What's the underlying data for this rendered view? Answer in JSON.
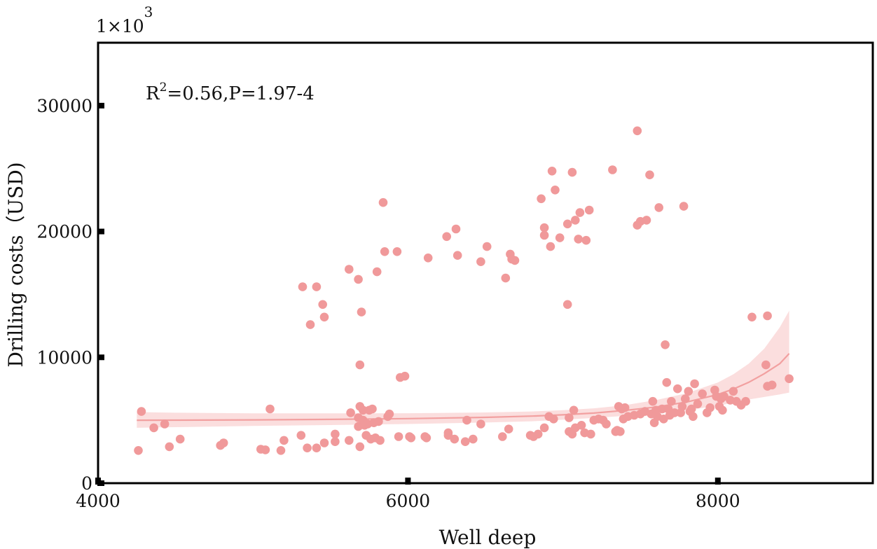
{
  "chart_data": {
    "type": "scatter",
    "xlabel": "Well deep",
    "ylabel": "Drilling costs（USD)",
    "y_multiplier_label": "1×10",
    "y_multiplier_exp": "3",
    "annotation": {
      "prefix": "R",
      "sup": "2",
      "suffix": "=0.56,P=1.97-4"
    },
    "xlim": [
      4000,
      9000
    ],
    "ylim": [
      0,
      35000
    ],
    "x_ticks": [
      4000,
      6000,
      8000
    ],
    "x_tick_labels": [
      "4000",
      "6000",
      "8000"
    ],
    "y_ticks": [
      0,
      10000,
      20000,
      30000
    ],
    "y_tick_labels": [
      "0",
      "10000",
      "20000",
      "30000"
    ],
    "grid": false,
    "legend": "none",
    "colors": {
      "points": "#f0999a",
      "fit": "#f2a0a0",
      "band": "#f8c8c8",
      "axis": "#000000"
    },
    "points": [
      [
        4260,
        2600
      ],
      [
        4280,
        5700
      ],
      [
        4360,
        4400
      ],
      [
        4430,
        4700
      ],
      [
        4460,
        2900
      ],
      [
        4530,
        3500
      ],
      [
        4790,
        3000
      ],
      [
        4810,
        3200
      ],
      [
        5050,
        2700
      ],
      [
        5080,
        2650
      ],
      [
        5110,
        5900
      ],
      [
        5180,
        2600
      ],
      [
        5200,
        3400
      ],
      [
        5310,
        3800
      ],
      [
        5320,
        15600
      ],
      [
        5350,
        2800
      ],
      [
        5370,
        12600
      ],
      [
        5410,
        15600
      ],
      [
        5410,
        2800
      ],
      [
        5450,
        14200
      ],
      [
        5460,
        13200
      ],
      [
        5460,
        3200
      ],
      [
        5530,
        3300
      ],
      [
        5530,
        3900
      ],
      [
        5620,
        3400
      ],
      [
        5620,
        17000
      ],
      [
        5630,
        5600
      ],
      [
        5680,
        16200
      ],
      [
        5680,
        5200
      ],
      [
        5680,
        4500
      ],
      [
        5690,
        9400
      ],
      [
        5690,
        6100
      ],
      [
        5690,
        2900
      ],
      [
        5700,
        13600
      ],
      [
        5710,
        5800
      ],
      [
        5710,
        5000
      ],
      [
        5720,
        4600
      ],
      [
        5730,
        3800
      ],
      [
        5740,
        4700
      ],
      [
        5750,
        5800
      ],
      [
        5760,
        3500
      ],
      [
        5770,
        5900
      ],
      [
        5780,
        4800
      ],
      [
        5790,
        3600
      ],
      [
        5800,
        16800
      ],
      [
        5810,
        4900
      ],
      [
        5820,
        3400
      ],
      [
        5840,
        22300
      ],
      [
        5850,
        18400
      ],
      [
        5870,
        5300
      ],
      [
        5880,
        5500
      ],
      [
        5930,
        18400
      ],
      [
        5940,
        3700
      ],
      [
        5950,
        8400
      ],
      [
        5980,
        8500
      ],
      [
        6010,
        3700
      ],
      [
        6020,
        3600
      ],
      [
        6110,
        3700
      ],
      [
        6120,
        3600
      ],
      [
        6130,
        17900
      ],
      [
        6250,
        19600
      ],
      [
        6260,
        3800
      ],
      [
        6260,
        4000
      ],
      [
        6300,
        3500
      ],
      [
        6310,
        20200
      ],
      [
        6320,
        18100
      ],
      [
        6370,
        3300
      ],
      [
        6380,
        5000
      ],
      [
        6420,
        3500
      ],
      [
        6470,
        4700
      ],
      [
        6470,
        17600
      ],
      [
        6510,
        18800
      ],
      [
        6610,
        3700
      ],
      [
        6630,
        16300
      ],
      [
        6650,
        4300
      ],
      [
        6660,
        18200
      ],
      [
        6670,
        17800
      ],
      [
        6690,
        17700
      ],
      [
        6790,
        3800
      ],
      [
        6810,
        3700
      ],
      [
        6840,
        3900
      ],
      [
        6860,
        22600
      ],
      [
        6880,
        20300
      ],
      [
        6880,
        19700
      ],
      [
        6880,
        4400
      ],
      [
        6910,
        5300
      ],
      [
        6920,
        18800
      ],
      [
        6930,
        24800
      ],
      [
        6940,
        5100
      ],
      [
        6950,
        23300
      ],
      [
        6980,
        19500
      ],
      [
        7030,
        14200
      ],
      [
        7030,
        20600
      ],
      [
        7040,
        4100
      ],
      [
        7040,
        5200
      ],
      [
        7060,
        24700
      ],
      [
        7060,
        3900
      ],
      [
        7070,
        5800
      ],
      [
        7080,
        20900
      ],
      [
        7080,
        4400
      ],
      [
        7100,
        19400
      ],
      [
        7110,
        21500
      ],
      [
        7120,
        4600
      ],
      [
        7140,
        4000
      ],
      [
        7150,
        19300
      ],
      [
        7170,
        21700
      ],
      [
        7180,
        3900
      ],
      [
        7200,
        5000
      ],
      [
        7230,
        5100
      ],
      [
        7260,
        5000
      ],
      [
        7280,
        4700
      ],
      [
        7320,
        24900
      ],
      [
        7340,
        4100
      ],
      [
        7350,
        4200
      ],
      [
        7360,
        6100
      ],
      [
        7370,
        4100
      ],
      [
        7380,
        5900
      ],
      [
        7390,
        5100
      ],
      [
        7400,
        6000
      ],
      [
        7420,
        5300
      ],
      [
        7460,
        5400
      ],
      [
        7480,
        28000
      ],
      [
        7480,
        20500
      ],
      [
        7500,
        20800
      ],
      [
        7500,
        5500
      ],
      [
        7530,
        5700
      ],
      [
        7540,
        20900
      ],
      [
        7560,
        24500
      ],
      [
        7570,
        5500
      ],
      [
        7580,
        6500
      ],
      [
        7590,
        4800
      ],
      [
        7600,
        5800
      ],
      [
        7610,
        5300
      ],
      [
        7620,
        21900
      ],
      [
        7640,
        5900
      ],
      [
        7650,
        5100
      ],
      [
        7660,
        11000
      ],
      [
        7670,
        8000
      ],
      [
        7680,
        5900
      ],
      [
        7690,
        5400
      ],
      [
        7700,
        6500
      ],
      [
        7720,
        5600
      ],
      [
        7740,
        7500
      ],
      [
        7760,
        5600
      ],
      [
        7770,
        6100
      ],
      [
        7780,
        22000
      ],
      [
        7790,
        6700
      ],
      [
        7810,
        7300
      ],
      [
        7820,
        5700
      ],
      [
        7830,
        5900
      ],
      [
        7840,
        5300
      ],
      [
        7850,
        7900
      ],
      [
        7870,
        6300
      ],
      [
        7900,
        7100
      ],
      [
        7930,
        5600
      ],
      [
        7950,
        6000
      ],
      [
        7980,
        7400
      ],
      [
        7990,
        6900
      ],
      [
        8010,
        6100
      ],
      [
        8020,
        6700
      ],
      [
        8030,
        5800
      ],
      [
        8040,
        6900
      ],
      [
        8080,
        6600
      ],
      [
        8100,
        7300
      ],
      [
        8120,
        6500
      ],
      [
        8150,
        6200
      ],
      [
        8180,
        6500
      ],
      [
        8220,
        13200
      ],
      [
        8310,
        9400
      ],
      [
        8320,
        7700
      ],
      [
        8320,
        13300
      ],
      [
        8350,
        7800
      ],
      [
        8460,
        8300
      ]
    ],
    "fit_line": [
      [
        4250,
        5000
      ],
      [
        4500,
        5010
      ],
      [
        5000,
        5030
      ],
      [
        5500,
        5070
      ],
      [
        6000,
        5130
      ],
      [
        6500,
        5230
      ],
      [
        6800,
        5330
      ],
      [
        7000,
        5430
      ],
      [
        7200,
        5570
      ],
      [
        7400,
        5780
      ],
      [
        7600,
        6050
      ],
      [
        7800,
        6450
      ],
      [
        8000,
        7050
      ],
      [
        8100,
        7480
      ],
      [
        8200,
        8020
      ],
      [
        8300,
        8700
      ],
      [
        8400,
        9500
      ],
      [
        8460,
        10300
      ]
    ],
    "band_upper": [
      [
        4250,
        5650
      ],
      [
        4500,
        5600
      ],
      [
        5000,
        5550
      ],
      [
        5500,
        5550
      ],
      [
        6000,
        5560
      ],
      [
        6500,
        5620
      ],
      [
        6800,
        5700
      ],
      [
        7000,
        5800
      ],
      [
        7200,
        5950
      ],
      [
        7400,
        6200
      ],
      [
        7600,
        6600
      ],
      [
        7800,
        7150
      ],
      [
        8000,
        8000
      ],
      [
        8100,
        8650
      ],
      [
        8200,
        9500
      ],
      [
        8300,
        10700
      ],
      [
        8400,
        12400
      ],
      [
        8460,
        13700
      ]
    ],
    "band_lower": [
      [
        4250,
        4400
      ],
      [
        4500,
        4450
      ],
      [
        5000,
        4550
      ],
      [
        5500,
        4620
      ],
      [
        6000,
        4700
      ],
      [
        6500,
        4820
      ],
      [
        6800,
        4920
      ],
      [
        7000,
        5040
      ],
      [
        7200,
        5180
      ],
      [
        7400,
        5350
      ],
      [
        7600,
        5530
      ],
      [
        7800,
        5800
      ],
      [
        8000,
        6150
      ],
      [
        8100,
        6400
      ],
      [
        8200,
        6650
      ],
      [
        8300,
        6850
      ],
      [
        8400,
        7050
      ],
      [
        8460,
        7200
      ]
    ]
  }
}
